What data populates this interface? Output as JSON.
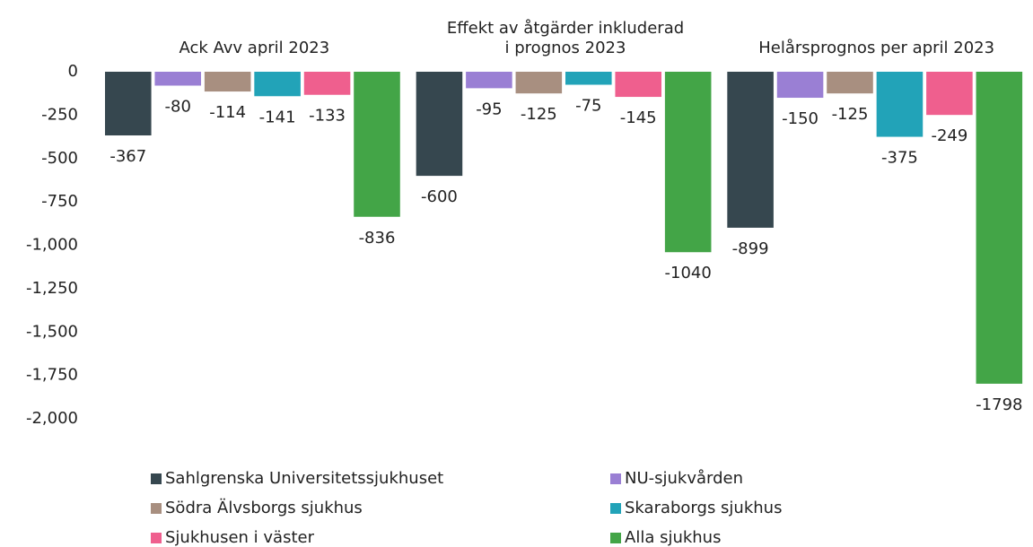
{
  "chart_data": {
    "type": "bar",
    "categories": [
      "Ack Avv april 2023",
      "Effekt av åtgärder inkluderad i prognos 2023",
      "Helårsprognos per april 2023"
    ],
    "series": [
      {
        "name": "Sahlgrenska Universitetssjukhuset",
        "color": "#36474f",
        "values": [
          -367,
          -600,
          -899
        ]
      },
      {
        "name": "NU-sjukvården",
        "color": "#9a7fd4",
        "values": [
          -80,
          -95,
          -150
        ]
      },
      {
        "name": "Södra Älvsborgs sjukhus",
        "color": "#a88f80",
        "values": [
          -114,
          -125,
          -125
        ]
      },
      {
        "name": "Skaraborgs sjukhus",
        "color": "#22a3b8",
        "values": [
          -141,
          -75,
          -375
        ]
      },
      {
        "name": "Sjukhusen i väster",
        "color": "#ef5f8e",
        "values": [
          -133,
          -145,
          -249
        ]
      },
      {
        "name": "Alla sjukhus",
        "color": "#43a547",
        "values": [
          -836,
          -1040,
          -1798
        ]
      }
    ],
    "ylim": [
      -2000,
      0
    ],
    "yticks": [
      0,
      -250,
      -500,
      -750,
      {
        "value": -1000,
        "label": "-1,000"
      },
      {
        "value": -1250,
        "label": "-1,250"
      },
      {
        "value": -1500,
        "label": "-1,500"
      },
      {
        "value": -1750,
        "label": "-1,750"
      },
      {
        "value": -2000,
        "label": "-2,000"
      }
    ],
    "grid": false,
    "legend": "bottom"
  }
}
